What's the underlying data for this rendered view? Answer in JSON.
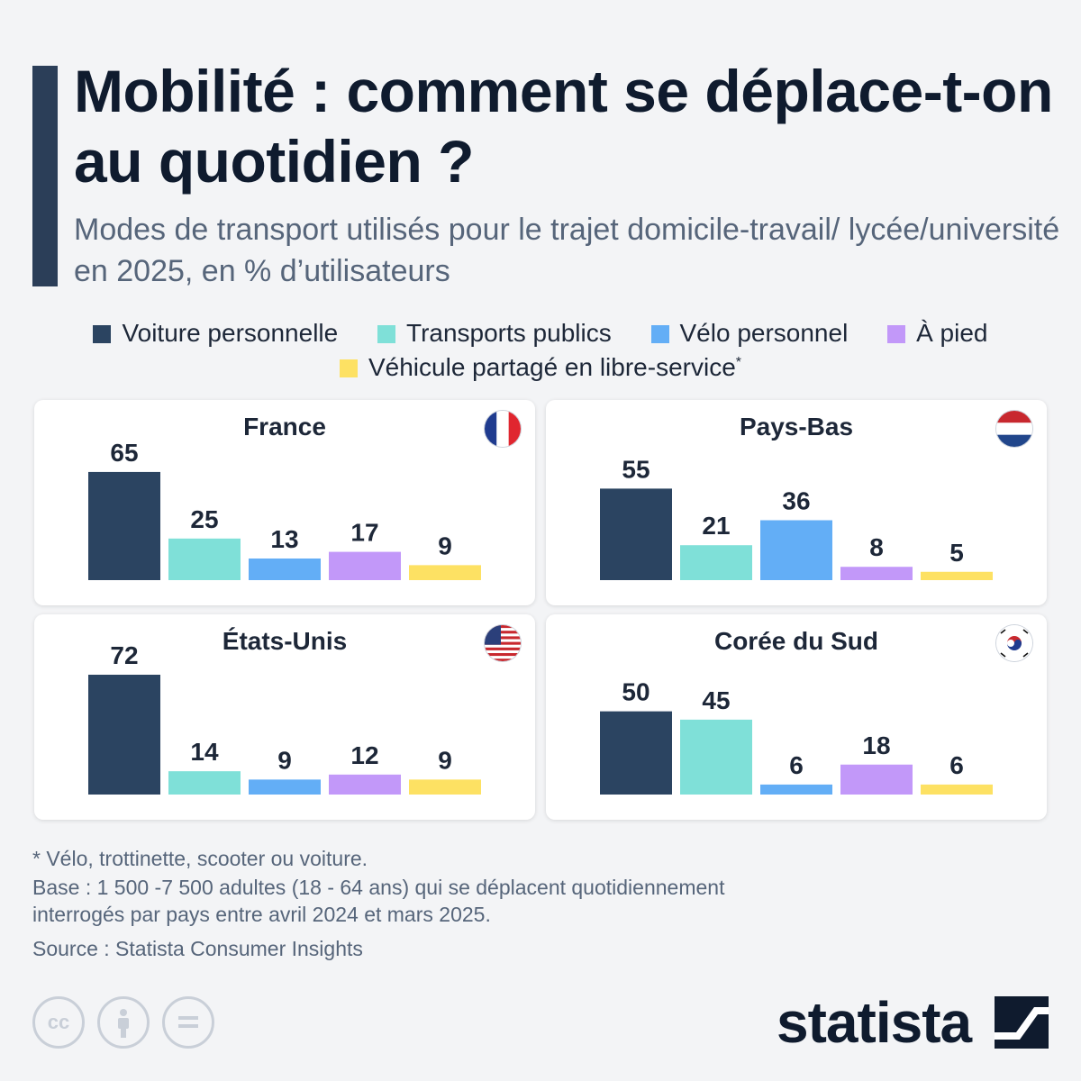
{
  "title": "Mobilité : comment se déplace-t-on au quotidien ?",
  "subtitle": "Modes de transport utilisés pour le trajet domicile-travail/ lycée/université en 2025, en % d’utilisateurs",
  "legend": [
    {
      "label": "Voiture personnelle",
      "color": "#2b4461"
    },
    {
      "label": "Transports publics",
      "color": "#7fe0d8"
    },
    {
      "label": "Vélo personnel",
      "color": "#63aef6"
    },
    {
      "label": "À pied",
      "color": "#c298f9"
    },
    {
      "label": "Véhicule partagé en libre-service",
      "color": "#fde163",
      "note_marker": "*"
    }
  ],
  "chart_data": [
    {
      "type": "bar",
      "title": "France",
      "flag_icon": "flag-france-icon",
      "categories": [
        "Voiture personnelle",
        "Transports publics",
        "Vélo personnel",
        "À pied",
        "Véhicule partagé en libre-service"
      ],
      "values": [
        65,
        25,
        13,
        17,
        9
      ],
      "ylim": [
        0,
        72
      ]
    },
    {
      "type": "bar",
      "title": "Pays-Bas",
      "flag_icon": "flag-netherlands-icon",
      "categories": [
        "Voiture personnelle",
        "Transports publics",
        "Vélo personnel",
        "À pied",
        "Véhicule partagé en libre-service"
      ],
      "values": [
        55,
        21,
        36,
        8,
        5
      ],
      "ylim": [
        0,
        72
      ]
    },
    {
      "type": "bar",
      "title": "États-Unis",
      "flag_icon": "flag-usa-icon",
      "categories": [
        "Voiture personnelle",
        "Transports publics",
        "Vélo personnel",
        "À pied",
        "Véhicule partagé en libre-service"
      ],
      "values": [
        72,
        14,
        9,
        12,
        9
      ],
      "ylim": [
        0,
        72
      ]
    },
    {
      "type": "bar",
      "title": "Corée du Sud",
      "flag_icon": "flag-south-korea-icon",
      "categories": [
        "Voiture personnelle",
        "Transports publics",
        "Vélo personnel",
        "À pied",
        "Véhicule partagé en libre-service"
      ],
      "values": [
        50,
        45,
        6,
        18,
        6
      ],
      "ylim": [
        0,
        72
      ]
    }
  ],
  "footnotes": {
    "asterisk": "* Vélo, trottinette, scooter ou voiture.",
    "base_line1": "Base : 1 500 -7 500 adultes (18 - 64 ans) qui se déplacent quotidiennement",
    "base_line2": "interrogés par pays entre avril 2024 et mars 2025.",
    "source": "Source : Statista Consumer Insights"
  },
  "license_icons": [
    "cc-icon",
    "attribution-icon",
    "no-derivatives-icon"
  ],
  "brand": "statista"
}
